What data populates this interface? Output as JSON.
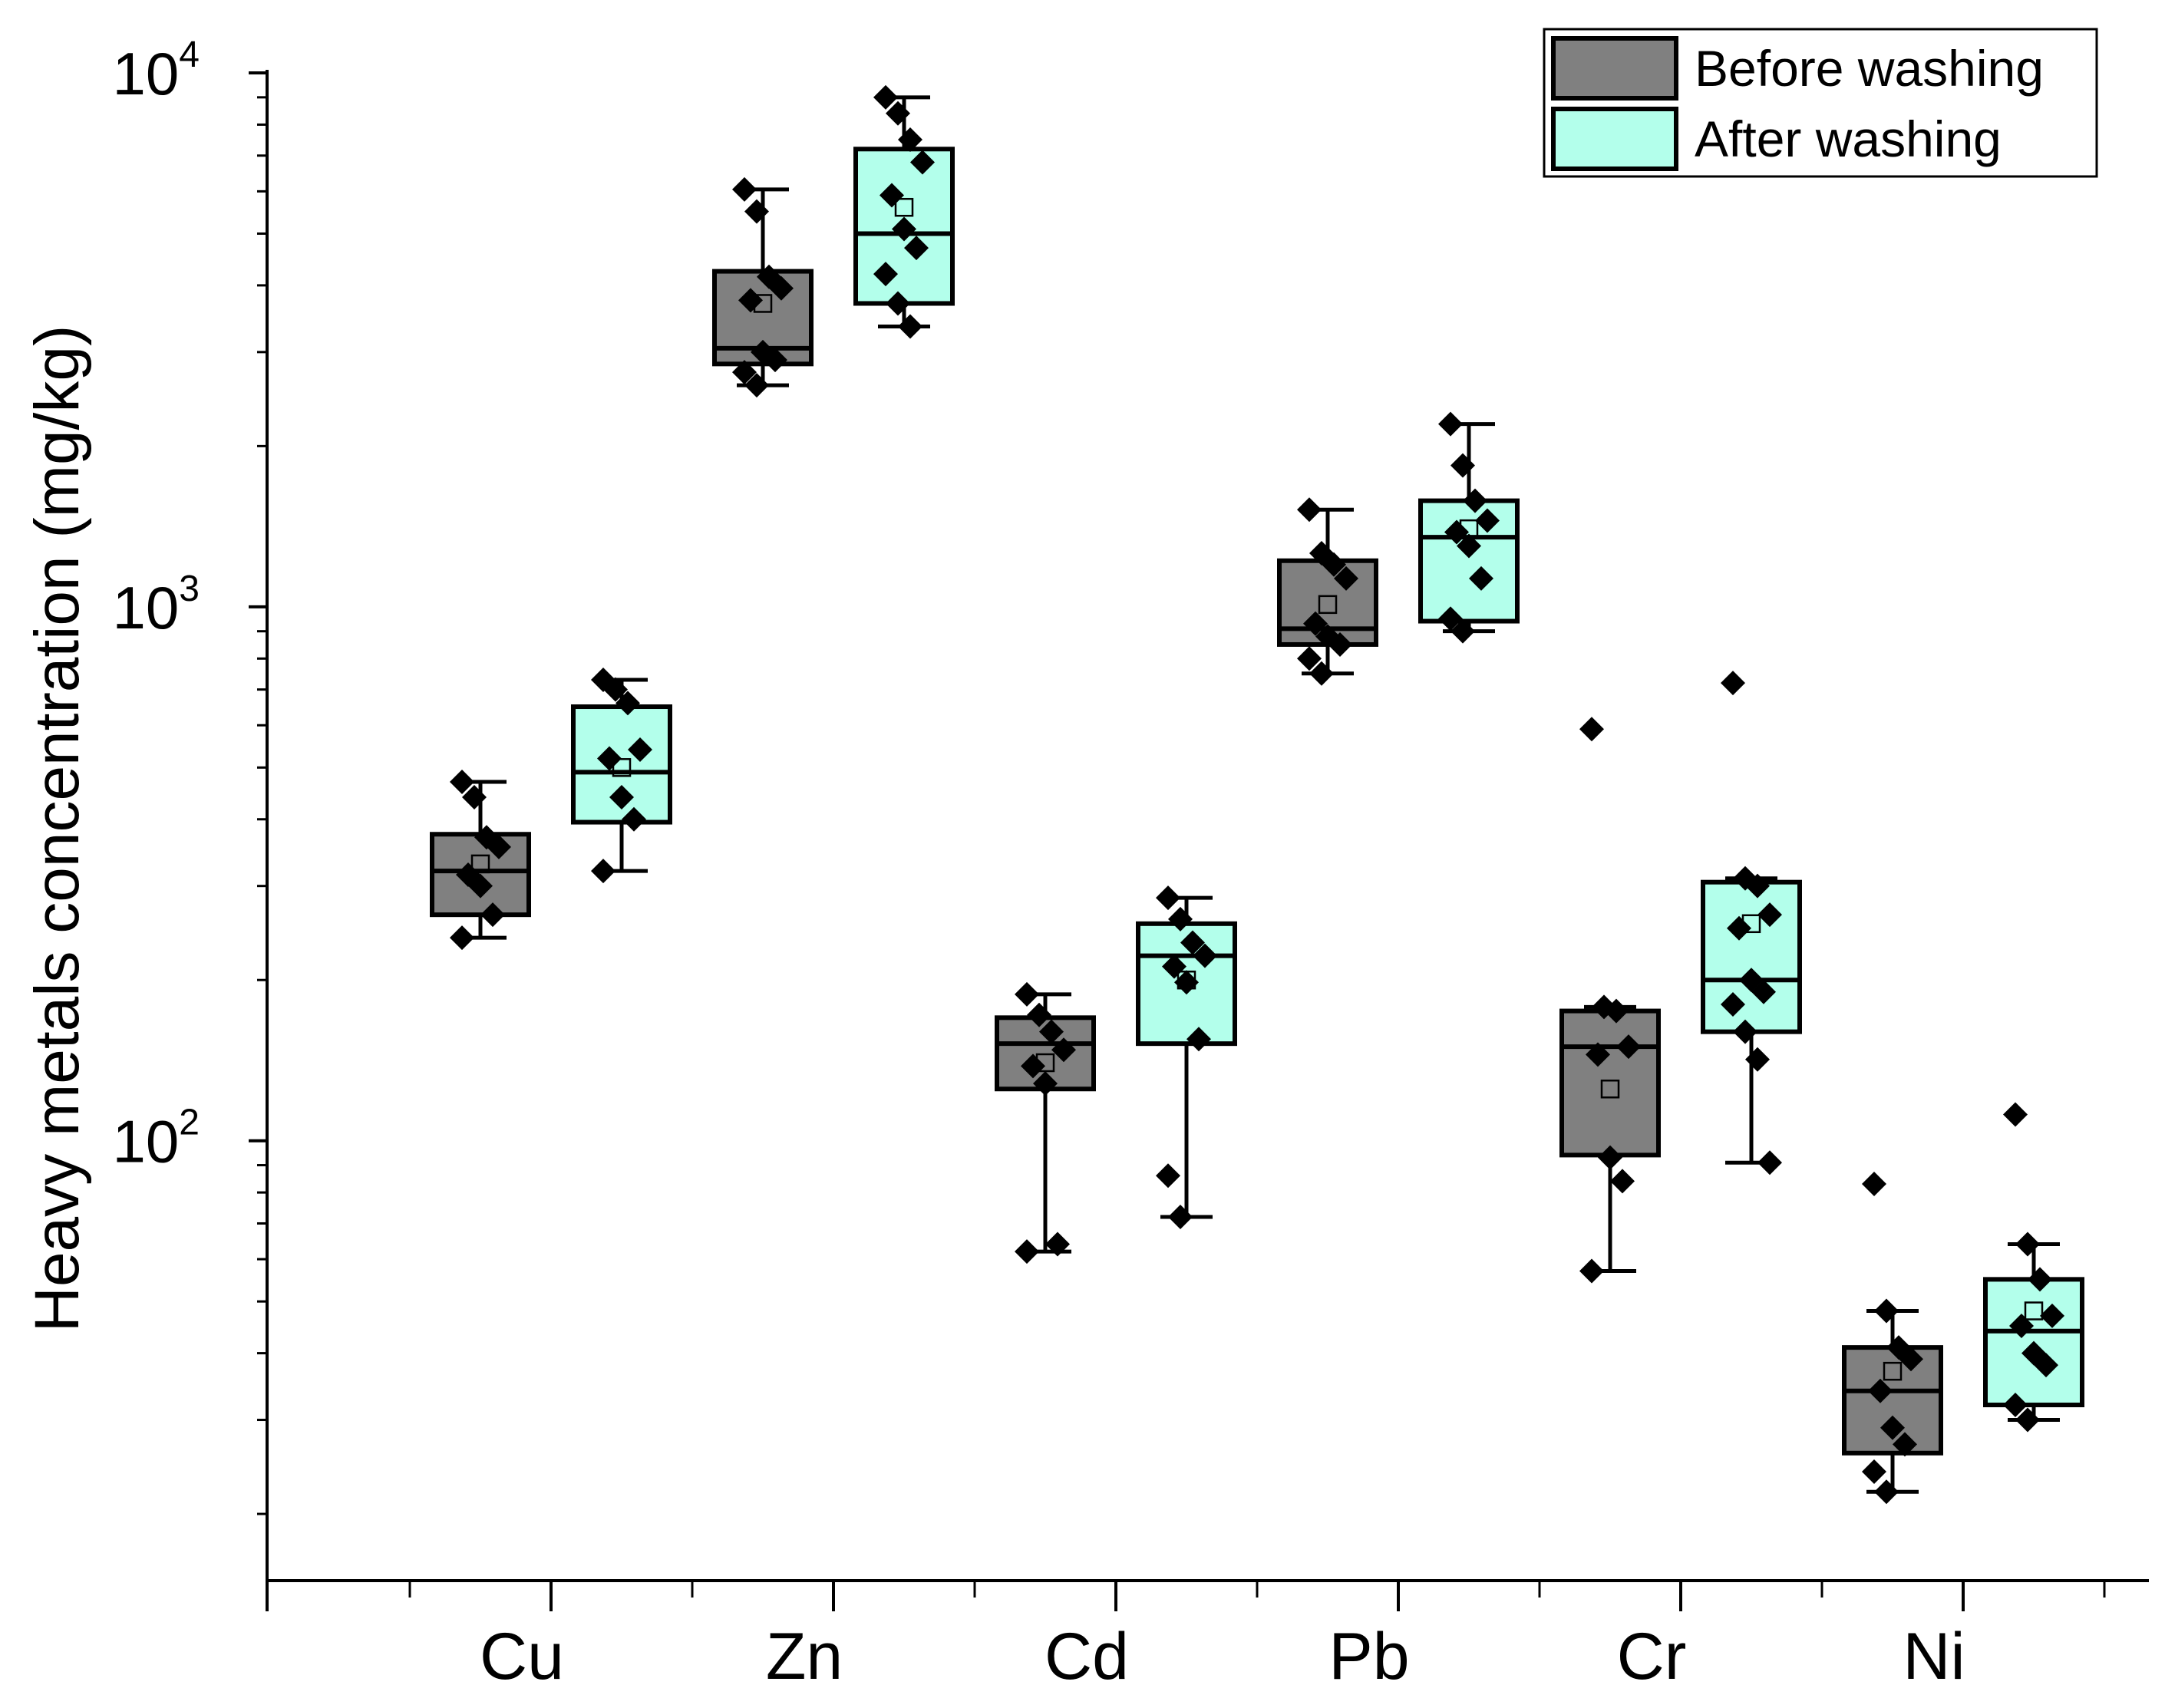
{
  "chart_data": {
    "type": "box",
    "scale": "log",
    "ylabel": "Heavy metals concentration (mg/kg)",
    "xlabel": "",
    "ylim": [
      15,
      10000
    ],
    "y_ticks": [
      {
        "value": 100,
        "base": "10",
        "exp": "2"
      },
      {
        "value": 1000,
        "base": "10",
        "exp": "3"
      },
      {
        "value": 10000,
        "base": "10",
        "exp": "4"
      }
    ],
    "categories": [
      "Cu",
      "Zn",
      "Cd",
      "Pb",
      "Cr",
      "Ni"
    ],
    "legend": {
      "position": "top-right",
      "entries": [
        {
          "name": "Before washing",
          "color": "#808080"
        },
        {
          "name": "After washing",
          "color": "#B3FFEB"
        }
      ]
    },
    "series": [
      {
        "name": "Before washing",
        "color": "#808080",
        "boxes": [
          {
            "category": "Cu",
            "whisker_low": 240,
            "q1": 265,
            "median": 320,
            "q3": 375,
            "whisker_high": 470,
            "mean": 330,
            "points": [
              470,
              440,
              370,
              355,
              315,
              300,
              265,
              240
            ]
          },
          {
            "category": "Zn",
            "whisker_low": 2600,
            "q1": 2850,
            "median": 3050,
            "q3": 4250,
            "whisker_high": 6050,
            "mean": 3700,
            "points": [
              6050,
              5500,
              4150,
              3950,
              3750,
              3000,
              2900,
              2750,
              2600
            ]
          },
          {
            "category": "Cd",
            "whisker_low": 62,
            "q1": 125,
            "median": 152,
            "q3": 170,
            "whisker_high": 188,
            "mean": 140,
            "points": [
              188,
              172,
              160,
              148,
              138,
              128,
              64,
              62
            ]
          },
          {
            "category": "Pb",
            "whisker_low": 750,
            "q1": 850,
            "median": 910,
            "q3": 1220,
            "whisker_high": 1520,
            "mean": 1010,
            "points": [
              1520,
              1260,
              1200,
              1130,
              930,
              880,
              850,
              800,
              750
            ]
          },
          {
            "category": "Cr",
            "whisker_low": 57,
            "q1": 94,
            "median": 150,
            "q3": 175,
            "whisker_high": 178,
            "mean": 125,
            "points": [
              590,
              178,
              175,
              150,
              145,
              93,
              84,
              57
            ]
          },
          {
            "category": "Ni",
            "whisker_low": 22,
            "q1": 26,
            "median": 34,
            "q3": 41,
            "whisker_high": 48,
            "mean": 37,
            "points": [
              83,
              48,
              41,
              39,
              34,
              29,
              27,
              24,
              22
            ]
          }
        ]
      },
      {
        "name": "After washing",
        "color": "#B3FFEB",
        "boxes": [
          {
            "category": "Cu",
            "whisker_low": 320,
            "q1": 395,
            "median": 490,
            "q3": 650,
            "whisker_high": 730,
            "mean": 500,
            "points": [
              730,
              700,
              660,
              540,
              520,
              440,
              400,
              320
            ]
          },
          {
            "category": "Zn",
            "whisker_low": 3350,
            "q1": 3700,
            "median": 5000,
            "q3": 7200,
            "whisker_high": 9000,
            "mean": 5600,
            "points": [
              9000,
              8400,
              7500,
              6800,
              5900,
              5100,
              4700,
              4200,
              3700,
              3350
            ]
          },
          {
            "category": "Cd",
            "whisker_low": 72,
            "q1": 152,
            "median": 222,
            "q3": 255,
            "whisker_high": 285,
            "mean": 200,
            "points": [
              285,
              260,
              235,
              222,
              212,
              198,
              155,
              86,
              72
            ]
          },
          {
            "category": "Pb",
            "whisker_low": 900,
            "q1": 940,
            "median": 1350,
            "q3": 1580,
            "whisker_high": 2200,
            "mean": 1400,
            "points": [
              2200,
              1840,
              1580,
              1450,
              1380,
              1300,
              1130,
              950,
              900
            ]
          },
          {
            "category": "Cr",
            "whisker_low": 91,
            "q1": 160,
            "median": 200,
            "q3": 305,
            "whisker_high": 310,
            "mean": 255,
            "points": [
              720,
              310,
              300,
              265,
              250,
              200,
              190,
              180,
              160,
              142,
              91
            ]
          },
          {
            "category": "Ni",
            "whisker_low": 30,
            "q1": 32,
            "median": 44,
            "q3": 55,
            "whisker_high": 64,
            "mean": 48,
            "points": [
              112,
              64,
              55,
              47,
              45,
              40,
              38,
              32,
              30
            ]
          }
        ]
      }
    ]
  }
}
